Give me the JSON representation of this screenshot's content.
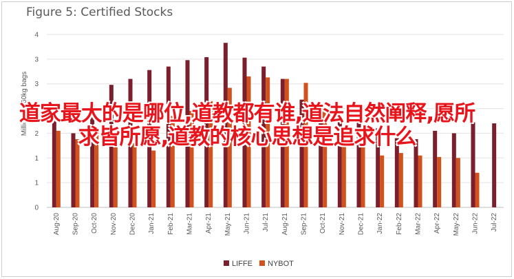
{
  "chart_data": {
    "type": "bar",
    "title": "Figure 5: Certified Stocks",
    "ylabel": "Millions of 60kg bags",
    "xlabel": "",
    "ylim": [
      0,
      3.5
    ],
    "ytick_values": [
      0,
      0.5,
      1,
      1.5,
      2,
      2.5,
      3,
      3.5
    ],
    "ytick_labels": [
      "0",
      "1",
      "1",
      "2",
      "2",
      "3",
      "3",
      "4"
    ],
    "grid": true,
    "legend_position": "bottom",
    "categories": [
      "Aug-20",
      "Sep-20",
      "Oct-20",
      "Nov-20",
      "Dec-20",
      "Jan-21",
      "Feb-21",
      "Mar-21",
      "Apr-21",
      "May-21",
      "Jun-21",
      "Jul-21",
      "Aug-21",
      "Sep-21",
      "Oct-21",
      "Nov-21",
      "Dec-21",
      "Jan-22",
      "Feb-22",
      "Mar-22",
      "Apr-22",
      "May-22",
      "Jun-22",
      "Jul-22"
    ],
    "series": [
      {
        "name": "LIFFE",
        "color": "#7a1f2b",
        "values": [
          1.75,
          1.5,
          2.08,
          2.48,
          2.6,
          2.78,
          2.85,
          2.98,
          3.04,
          3.33,
          3.03,
          2.85,
          2.6,
          2.18,
          1.95,
          1.75,
          1.72,
          1.6,
          1.4,
          1.38,
          1.55,
          1.5,
          1.72,
          1.7
        ]
      },
      {
        "name": "NYBOT",
        "color": "#d2521d",
        "values": [
          1.55,
          1.38,
          1.58,
          1.3,
          1.3,
          1.15,
          1.85,
          1.95,
          2.15,
          2.42,
          2.65,
          2.63,
          2.6,
          2.52,
          2.02,
          1.6,
          1.32,
          1.05,
          1.1,
          1.05,
          1.02,
          1.0,
          0.7,
          null
        ]
      }
    ]
  },
  "overlay_text": "道家最大的是哪位,道教都有谁,道法自然阐释,愿所求皆所愿,道教的核心思想是追求什么"
}
